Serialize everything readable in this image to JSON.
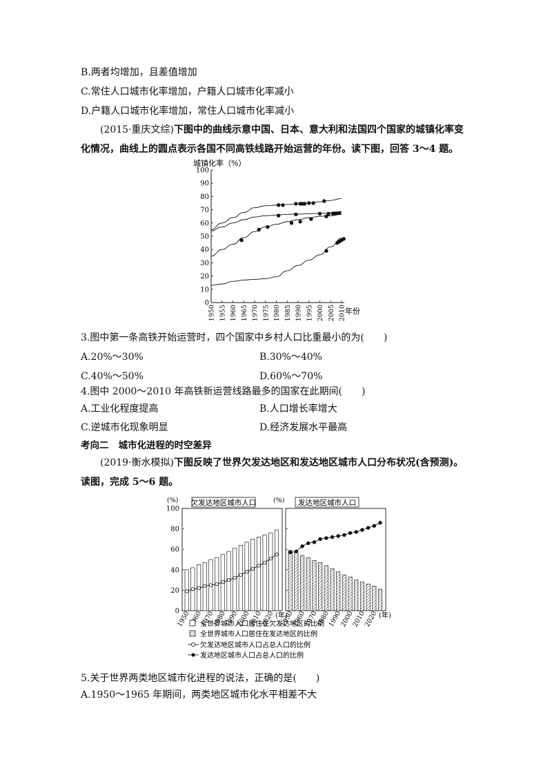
{
  "top_options": {
    "B": "B.两者均增加，且差值增加",
    "C": "C.常住人口城市化率增加，户籍人口城市化率减小",
    "D": "D.户籍人口城市化率增加，常住人口城市化率减小"
  },
  "intro1": {
    "source": "(2015·重庆文综)",
    "text": "下图中的曲线示意中国、日本、意大利和法国四个国家的城镇化率变化情况，曲线上的圆点表示各国不同高铁线路开始运营的年份。读下图，回答 3～4 题。"
  },
  "q3": {
    "stem": "3.图中第一条高铁开始运营时，四个国家中乡村人口比重最小的为(　　)",
    "A": "A.20%～30%",
    "B": "B.30%～40%",
    "C": "C.40%～50%",
    "D": "D.60%～70%"
  },
  "q4": {
    "stem": "4.图中 2000～2010 年高铁新运营线路最多的国家在此期间(　　)",
    "A": "A.工业化程度提高",
    "B": "B.人口增长率增大",
    "C": "C.逆城市化现象明显",
    "D": "D.经济发展水平最高"
  },
  "section2": {
    "label": "考向二",
    "title": "城市化进程的时空差异"
  },
  "intro2": {
    "source": "(2019·衡水模拟)",
    "text": "下图反映了世界欠发达地区和发达地区城市人口分布状况(含预测)。读图，完成 5～6 题。"
  },
  "q5": {
    "stem": "5.关于世界两类地区城市化进程的说法，正确的是(　　)",
    "A": "A.1950～1965 年期间，两类地区城市化水平相差不大"
  },
  "chart_data": [
    {
      "type": "line",
      "ylabel": "城镇化率（%）",
      "xlabel": "年份",
      "ylim": [
        0,
        100
      ],
      "yticks": [
        0,
        10,
        20,
        30,
        40,
        50,
        60,
        70,
        80,
        90,
        100
      ],
      "xticks": [
        1950,
        1955,
        1960,
        1965,
        1970,
        1975,
        1980,
        1985,
        1990,
        1995,
        2000,
        2005,
        2010
      ],
      "series": [
        {
          "curve": [
            [
              1950,
              55
            ],
            [
              1955,
              60
            ],
            [
              1960,
              64
            ],
            [
              1965,
              68
            ],
            [
              1970,
              71.5
            ],
            [
              1975,
              73
            ],
            [
              1980,
              73.5
            ],
            [
              1985,
              74
            ],
            [
              1990,
              74.5
            ],
            [
              1995,
              75
            ],
            [
              2000,
              76
            ],
            [
              2005,
              77
            ],
            [
              2010,
              78.5
            ]
          ],
          "dots": [
            [
              1981,
              73.5
            ],
            [
              1983,
              73.5
            ],
            [
              1989,
              74.5
            ],
            [
              1991,
              74.5
            ],
            [
              1992,
              74.5
            ],
            [
              1993,
              74.5
            ],
            [
              1995,
              75
            ],
            [
              1997,
              75
            ],
            [
              2002,
              76.5
            ]
          ]
        },
        {
          "curve": [
            [
              1950,
              54
            ],
            [
              1955,
              57
            ],
            [
              1960,
              60
            ],
            [
              1965,
              62.5
            ],
            [
              1970,
              64.5
            ],
            [
              1975,
              65.5
            ],
            [
              1980,
              66
            ],
            [
              1985,
              66.5
            ],
            [
              1990,
              66.7
            ],
            [
              1995,
              67
            ],
            [
              2000,
              67.3
            ],
            [
              2005,
              67.7
            ],
            [
              2010,
              68.5
            ]
          ],
          "dots": [
            [
              1981,
              65.6
            ],
            [
              1989,
              66.5
            ],
            [
              2000,
              67
            ],
            [
              2004,
              67
            ],
            [
              2006,
              67.2
            ],
            [
              2007,
              67.3
            ],
            [
              2008,
              67.3
            ],
            [
              2009,
              67.5
            ]
          ]
        },
        {
          "curve": [
            [
              1950,
              35
            ],
            [
              1955,
              40
            ],
            [
              1960,
              44
            ],
            [
              1965,
              49
            ],
            [
              1970,
              53.5
            ],
            [
              1975,
              57
            ],
            [
              1980,
              59
            ],
            [
              1985,
              61
            ],
            [
              1990,
              62.5
            ],
            [
              1995,
              64
            ],
            [
              2000,
              65
            ],
            [
              2005,
              65.5
            ],
            [
              2010,
              66.5
            ]
          ],
          "dots": [
            [
              1964,
              47
            ],
            [
              1972,
              55
            ],
            [
              1976,
              57
            ],
            [
              1987,
              60
            ],
            [
              1991,
              61
            ],
            [
              1996,
              63
            ],
            [
              2003,
              65
            ]
          ]
        },
        {
          "curve": [
            [
              1950,
              13
            ],
            [
              1955,
              14
            ],
            [
              1960,
              16
            ],
            [
              1965,
              17
            ],
            [
              1970,
              17.5
            ],
            [
              1975,
              18
            ],
            [
              1980,
              19.5
            ],
            [
              1985,
              24
            ],
            [
              1990,
              28
            ],
            [
              1995,
              32
            ],
            [
              2000,
              36
            ],
            [
              2005,
              42
            ],
            [
              2010,
              48.5
            ]
          ],
          "dots": [
            [
              2003,
              39
            ],
            [
              2008,
              45
            ],
            [
              2009,
              46
            ],
            [
              2010,
              47
            ],
            [
              2011,
              48
            ]
          ]
        }
      ]
    },
    {
      "type": "bar",
      "title": "欠发达地区城市人口",
      "unit": "(%)",
      "ylim": [
        0,
        100
      ],
      "yticks": [
        0,
        20,
        40,
        60,
        80,
        100
      ],
      "categories": [
        1950,
        1955,
        1960,
        1965,
        1970,
        1975,
        1980,
        1985,
        1990,
        1995,
        2000,
        2005,
        2010,
        2015,
        2020,
        2025
      ],
      "xtick_labels": [
        "1950",
        "1960",
        "1970",
        "1980",
        "1990",
        "2000",
        "2010",
        "2020"
      ],
      "xunit": "(年)",
      "bars": {
        "name": "全世界城市人口居住在欠发达地区的比例",
        "values": [
          40,
          42,
          45,
          47,
          50,
          52,
          55,
          58,
          61,
          64,
          67,
          70,
          72,
          74,
          76,
          79
        ]
      },
      "line": {
        "name": "欠发达地区城市人口占总人口的比例",
        "values": [
          19,
          21,
          22,
          24,
          25,
          26,
          28,
          30,
          32,
          35,
          38,
          41,
          44,
          47,
          51,
          55
        ]
      }
    },
    {
      "type": "bar",
      "title": "发达地区城市人口",
      "ylim": [
        0,
        100
      ],
      "categories": [
        1950,
        1955,
        1960,
        1965,
        1970,
        1975,
        1980,
        1985,
        1990,
        1995,
        2000,
        2005,
        2010,
        2015,
        2020,
        2025
      ],
      "xtick_labels": [
        "1950",
        "1960",
        "1970",
        "1980",
        "1990",
        "2000",
        "2010",
        "2020"
      ],
      "xunit": "(年)",
      "bars": {
        "name": "全世界城市人口居住在发达地区的比例",
        "values": [
          59,
          57,
          54,
          52,
          49,
          47,
          44,
          41,
          38,
          35,
          33,
          30,
          28,
          26,
          24,
          21
        ]
      },
      "line": {
        "name": "发达地区城市人口占总人口的比例",
        "values": [
          57,
          58,
          63,
          66,
          67,
          70,
          71,
          72,
          73,
          74,
          76,
          77,
          79,
          81,
          83,
          86
        ]
      }
    }
  ],
  "legend": [
    "全世界城市人口居住在欠发达地区的比例",
    "全世界城市人口居住在发达地区的比例",
    "欠发达地区城市人口占总人口的比例",
    "发达地区城市人口占总人口的比例"
  ]
}
